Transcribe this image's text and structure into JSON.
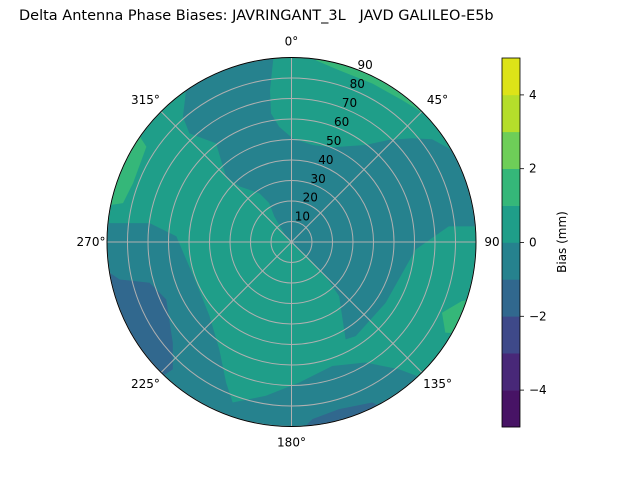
{
  "chart_data": {
    "type": "polar-contour",
    "title": "Delta Antenna Phase Biases: JAVRINGANT_3L   JAVD GALILEO-E5b",
    "angular_ticks": [
      {
        "deg": 0,
        "label": "0°"
      },
      {
        "deg": 45,
        "label": "45°"
      },
      {
        "deg": 90,
        "label": "90"
      },
      {
        "deg": 135,
        "label": "135°"
      },
      {
        "deg": 180,
        "label": "180°"
      },
      {
        "deg": 225,
        "label": "225°"
      },
      {
        "deg": 270,
        "label": "270°"
      },
      {
        "deg": 315,
        "label": "315°"
      }
    ],
    "radial_ticks": [
      10,
      20,
      30,
      40,
      50,
      60,
      70,
      80,
      90
    ],
    "radial_range": [
      0,
      90
    ],
    "azimuth_direction": "clockwise, 0 at top",
    "grid": true,
    "colorbar": {
      "label": "Bias (mm)",
      "range": [
        -5,
        5
      ],
      "ticks": [
        {
          "v": 4,
          "label": "4"
        },
        {
          "v": 2,
          "label": "2"
        },
        {
          "v": 0,
          "label": "0"
        },
        {
          "v": -2,
          "label": "−2"
        },
        {
          "v": -4,
          "label": "−4"
        }
      ],
      "levels": [
        -5,
        -4,
        -3,
        -2,
        -1,
        0,
        1,
        2,
        3,
        4,
        5
      ],
      "colors": [
        "#471365",
        "#482878",
        "#3e4989",
        "#31688e",
        "#26828e",
        "#1f9e89",
        "#35b779",
        "#6ece58",
        "#b5de2b",
        "#dde318"
      ],
      "colormap": "viridis"
    },
    "base_level": [
      0,
      1
    ],
    "regions_note_units": "points are [east, north] in zenith-angle degrees",
    "regions": [
      {
        "level": [
          -1,
          0
        ],
        "points": [
          [
            -61,
            93.5
          ],
          [
            -51.4,
            74.1
          ],
          [
            -53,
            61.1
          ],
          [
            -49.8,
            53
          ],
          [
            -36.8,
            48.1
          ],
          [
            -34.4,
            40
          ],
          [
            -31.9,
            31.9
          ],
          [
            -25.4,
            27.1
          ],
          [
            -15.7,
            23.8
          ],
          [
            -10.9,
            19
          ],
          [
            -8.4,
            12.5
          ],
          [
            -2.8,
            2.8
          ],
          [
            3.7,
            -3.7
          ],
          [
            7,
            -6.2
          ],
          [
            16.7,
            -16.7
          ],
          [
            23.2,
            -26.4
          ],
          [
            26.4,
            -47.5
          ],
          [
            31.3,
            -45.9
          ],
          [
            45.9,
            -29.7
          ],
          [
            60.5,
            -3.7
          ],
          [
            76.7,
            7.6
          ],
          [
            101,
            7.6
          ],
          [
            101,
            93.5
          ]
        ]
      },
      {
        "level": [
          0,
          1
        ],
        "points": [
          [
            -8.1,
            96.8
          ],
          [
            -10.5,
            74.1
          ],
          [
            -10,
            62.7
          ],
          [
            -6,
            56.2
          ],
          [
            0.5,
            50.6
          ],
          [
            10.2,
            47.3
          ],
          [
            19.9,
            46.2
          ],
          [
            36.1,
            47.3
          ],
          [
            47.5,
            49.8
          ],
          [
            58.8,
            50.6
          ],
          [
            68.6,
            50.1
          ],
          [
            78.3,
            44.9
          ],
          [
            101,
            41.7
          ],
          [
            101,
            96.8
          ]
        ]
      },
      {
        "level": [
          1,
          2
        ],
        "points": [
          [
            10.2,
            96.8
          ],
          [
            11.8,
            88.7
          ],
          [
            23.2,
            83.8
          ],
          [
            39.4,
            77.3
          ],
          [
            54,
            69.2
          ],
          [
            64.5,
            62.7
          ],
          [
            84.8,
            77.3
          ],
          [
            84.8,
            96.8
          ]
        ]
      },
      {
        "level": [
          -1,
          0
        ],
        "points": [
          [
            -93.5,
            9.2
          ],
          [
            -69.2,
            9.2
          ],
          [
            -56.2,
            2.8
          ],
          [
            -46.5,
            -19.9
          ],
          [
            -40,
            -36.1
          ],
          [
            -35.2,
            -52.4
          ],
          [
            -31.9,
            -68.6
          ],
          [
            -28.7,
            -78.3
          ],
          [
            -12.5,
            -75
          ],
          [
            3.7,
            -68.6
          ],
          [
            19.9,
            -60.5
          ],
          [
            36.1,
            -58.8
          ],
          [
            52.4,
            -62.1
          ],
          [
            65.3,
            -66.9
          ],
          [
            84.8,
            -101
          ],
          [
            -93.5,
            -101
          ]
        ]
      },
      {
        "level": [
          -2,
          -1
        ],
        "points": [
          [
            -93.5,
            -11.8
          ],
          [
            -83.8,
            -18.3
          ],
          [
            -69.2,
            -19.9
          ],
          [
            -61.1,
            -28
          ],
          [
            -57.9,
            -49.1
          ],
          [
            -57.9,
            -62.1
          ],
          [
            -62.7,
            -65.3
          ],
          [
            -77.3,
            -84.8
          ],
          [
            -93.5,
            -84.8
          ]
        ]
      },
      {
        "level": [
          -2,
          -1
        ],
        "points": [
          [
            3.7,
            -92.9
          ],
          [
            10.2,
            -86.4
          ],
          [
            23.2,
            -81.5
          ],
          [
            39.4,
            -78.3
          ],
          [
            52.4,
            -84.8
          ],
          [
            52.4,
            -101
          ],
          [
            3.7,
            -101
          ]
        ]
      },
      {
        "level": [
          1,
          2
        ],
        "points": [
          [
            -93.5,
            44.9
          ],
          [
            -74,
            51.4
          ],
          [
            -70.8,
            46.5
          ],
          [
            -77.3,
            28.7
          ],
          [
            -82.2,
            19
          ],
          [
            -93.5,
            17.3
          ]
        ]
      },
      {
        "level": [
          1,
          2
        ],
        "points": [
          [
            73.4,
            -34.5
          ],
          [
            83.1,
            -28.8
          ],
          [
            101,
            -26.4
          ],
          [
            101,
            -45.9
          ],
          [
            75,
            -44.2
          ]
        ]
      }
    ]
  }
}
